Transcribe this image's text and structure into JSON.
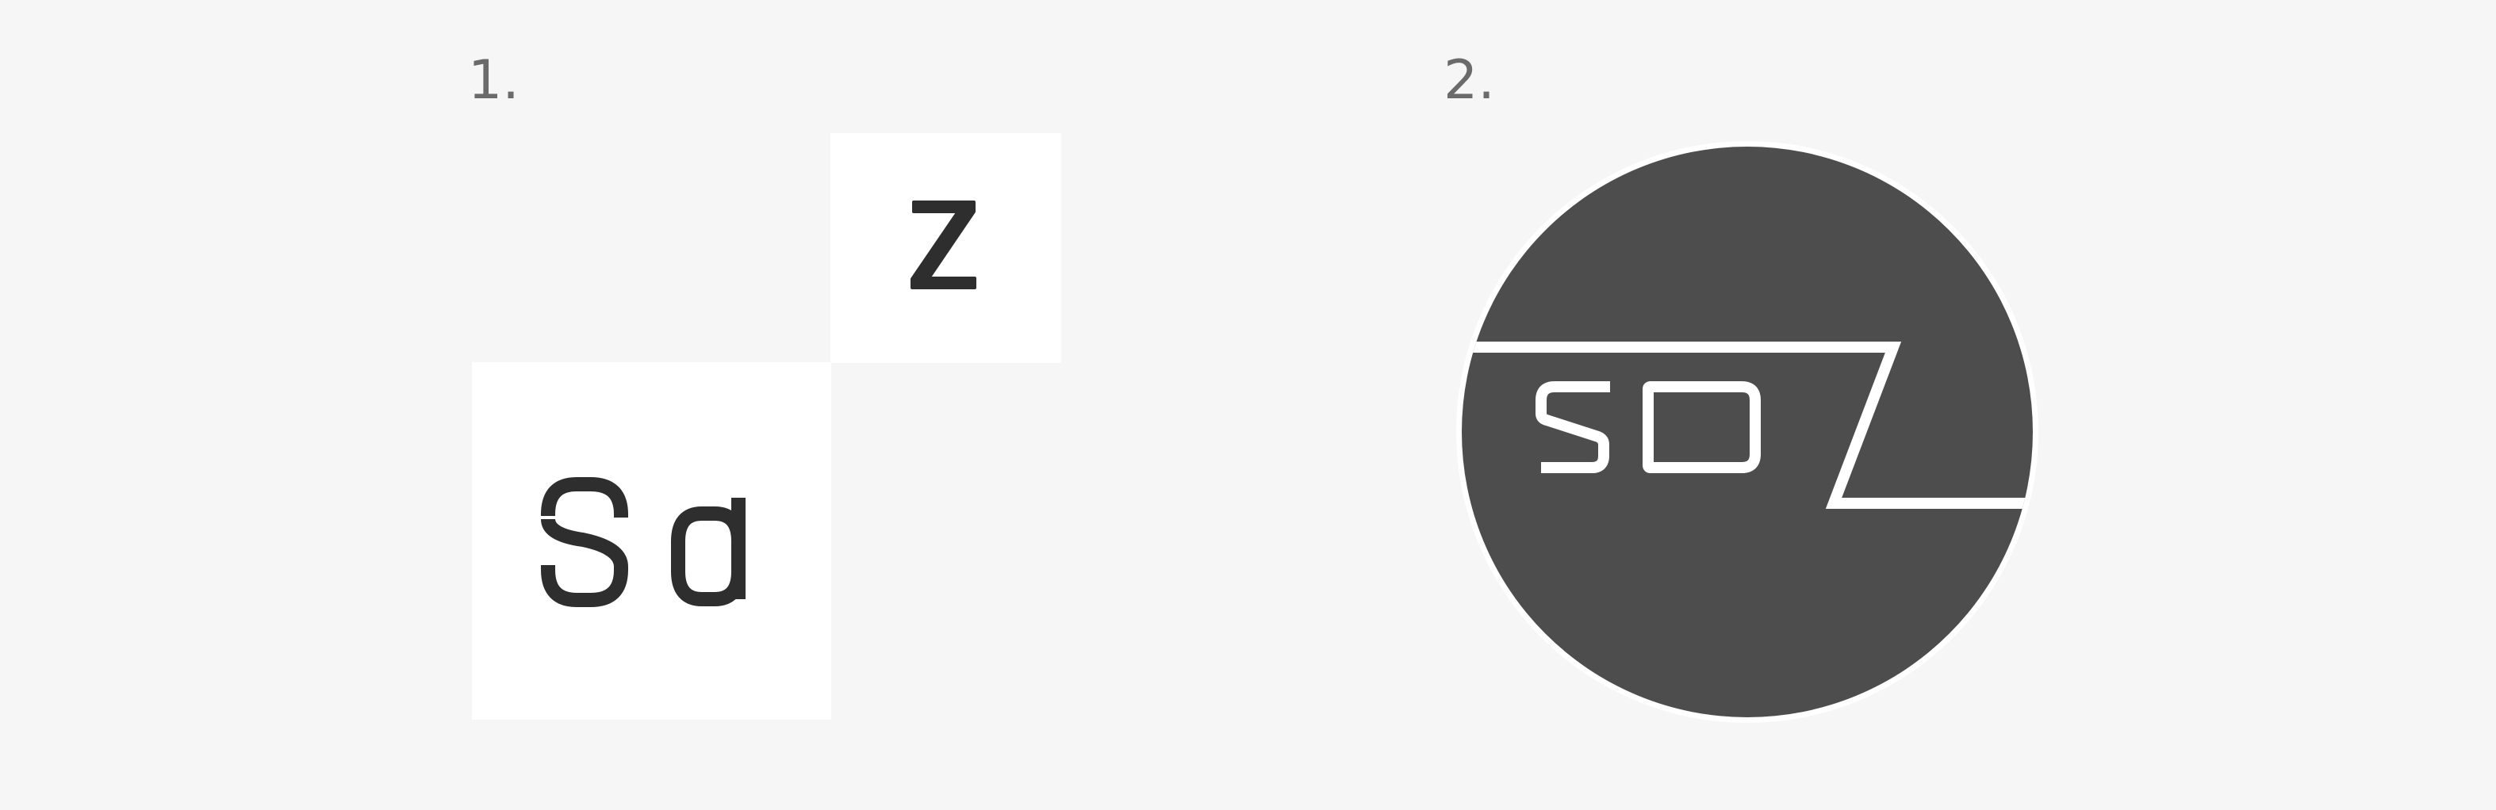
{
  "variants": [
    {
      "number": "1.",
      "tile_top_letter": "z",
      "tile_bottom_letters": "Sd"
    },
    {
      "number": "2.",
      "emblem_letters": "SDZ"
    }
  ],
  "colors": {
    "background": "#f7f6f7",
    "tile": "#ffffff",
    "ink": "#2e2e2e",
    "emblem_fill": "#4d4d4d",
    "emblem_line": "#ffffff",
    "number": "#6b6b6b"
  }
}
